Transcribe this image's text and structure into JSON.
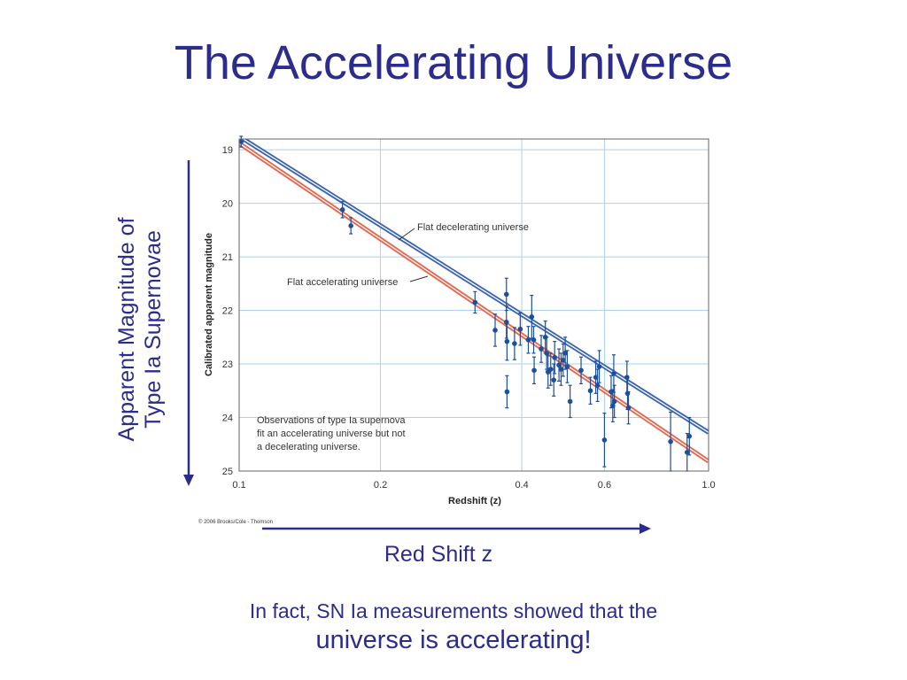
{
  "slide": {
    "title": "The Accelerating Universe",
    "side_label_line1": "Apparent Magnitude of",
    "side_label_line2": "Type Ia Supernovae",
    "bottom_label": "Red Shift z",
    "caption_line1": "In fact, SN Ia measurements showed that the",
    "caption_line2": "universe is accelerating!"
  },
  "colors": {
    "text": "#2b2c8c",
    "arrow": "#2b2c8c",
    "grid": "#a9d3ee",
    "points": "#1c4f9c",
    "decelerating_line": "#3a63b4",
    "accelerating_line": "#e8654b"
  },
  "chart_data": {
    "type": "scatter",
    "xlabel": "Redshift (z)",
    "ylabel": "Calibrated apparent magnitude",
    "xscale": "log",
    "xlim": [
      0.1,
      1.0
    ],
    "ylim": [
      25.0,
      18.8
    ],
    "x_ticks": [
      0.1,
      0.2,
      0.4,
      0.6,
      1.0
    ],
    "x_tick_labels": [
      "0.1",
      "0.2",
      "0.4",
      "0.6",
      "1.0"
    ],
    "y_ticks": [
      19,
      20,
      21,
      22,
      23,
      24,
      25
    ],
    "y_tick_labels": [
      "19",
      "20",
      "21",
      "22",
      "23",
      "24",
      "25"
    ],
    "grid": true,
    "series": [
      {
        "name": "Flat decelerating universe",
        "kind": "line",
        "x": [
          0.1,
          1.0
        ],
        "y": [
          18.75,
          24.28
        ]
      },
      {
        "name": "Flat accelerating universe",
        "kind": "line",
        "x": [
          0.1,
          1.0
        ],
        "y": [
          18.88,
          24.82
        ]
      },
      {
        "kind": "points",
        "points": [
          {
            "x": 0.101,
            "y": 18.85,
            "err": 0.1
          },
          {
            "x": 0.166,
            "y": 20.12,
            "err": 0.15
          },
          {
            "x": 0.173,
            "y": 20.42,
            "err": 0.15
          },
          {
            "x": 0.318,
            "y": 21.85,
            "err": 0.2
          },
          {
            "x": 0.351,
            "y": 22.37,
            "err": 0.3
          },
          {
            "x": 0.371,
            "y": 21.7,
            "err": 0.3
          },
          {
            "x": 0.371,
            "y": 22.22,
            "err": 0.3
          },
          {
            "x": 0.372,
            "y": 22.58,
            "err": 0.35
          },
          {
            "x": 0.372,
            "y": 23.52,
            "err": 0.3
          },
          {
            "x": 0.386,
            "y": 22.62,
            "err": 0.3
          },
          {
            "x": 0.397,
            "y": 22.35,
            "err": 0.3
          },
          {
            "x": 0.413,
            "y": 22.55,
            "err": 0.25
          },
          {
            "x": 0.42,
            "y": 22.12,
            "err": 0.4
          },
          {
            "x": 0.424,
            "y": 22.55,
            "err": 0.25
          },
          {
            "x": 0.425,
            "y": 23.12,
            "err": 0.25
          },
          {
            "x": 0.44,
            "y": 22.72,
            "err": 0.25
          },
          {
            "x": 0.449,
            "y": 22.5,
            "err": 0.3
          },
          {
            "x": 0.452,
            "y": 22.8,
            "err": 0.3
          },
          {
            "x": 0.455,
            "y": 23.15,
            "err": 0.3
          },
          {
            "x": 0.461,
            "y": 23.1,
            "err": 0.3
          },
          {
            "x": 0.468,
            "y": 23.3,
            "err": 0.3
          },
          {
            "x": 0.47,
            "y": 22.88,
            "err": 0.3
          },
          {
            "x": 0.48,
            "y": 23.02,
            "err": 0.3
          },
          {
            "x": 0.485,
            "y": 23.1,
            "err": 0.3
          },
          {
            "x": 0.49,
            "y": 22.93,
            "err": 0.3
          },
          {
            "x": 0.495,
            "y": 22.8,
            "err": 0.3
          },
          {
            "x": 0.5,
            "y": 23.05,
            "err": 0.3
          },
          {
            "x": 0.507,
            "y": 23.7,
            "err": 0.3
          },
          {
            "x": 0.535,
            "y": 23.12,
            "err": 0.25
          },
          {
            "x": 0.56,
            "y": 23.5,
            "err": 0.25
          },
          {
            "x": 0.575,
            "y": 23.25,
            "err": 0.3
          },
          {
            "x": 0.58,
            "y": 23.4,
            "err": 0.3
          },
          {
            "x": 0.585,
            "y": 23.05,
            "err": 0.3
          },
          {
            "x": 0.6,
            "y": 24.42,
            "err": 0.5
          },
          {
            "x": 0.62,
            "y": 23.52,
            "err": 0.3
          },
          {
            "x": 0.625,
            "y": 23.78,
            "err": 0.3
          },
          {
            "x": 0.628,
            "y": 23.18,
            "err": 0.35
          },
          {
            "x": 0.63,
            "y": 23.7,
            "err": 0.3
          },
          {
            "x": 0.67,
            "y": 23.25,
            "err": 0.3
          },
          {
            "x": 0.672,
            "y": 23.55,
            "err": 0.3
          },
          {
            "x": 0.675,
            "y": 23.82,
            "err": 0.3
          },
          {
            "x": 0.83,
            "y": 24.45,
            "err": 0.55
          },
          {
            "x": 0.9,
            "y": 24.65,
            "err": 0.35
          },
          {
            "x": 0.91,
            "y": 24.35,
            "err": 0.35
          }
        ]
      }
    ],
    "annotations": [
      {
        "text": "Flat decelerating universe"
      },
      {
        "text": "Flat accelerating universe"
      },
      {
        "lines": [
          "Observations of type Ia supernova",
          "fit an accelerating universe but not",
          "a decelerating universe."
        ]
      }
    ],
    "credit": "© 2006 Brooks/Cole - Thomson"
  }
}
